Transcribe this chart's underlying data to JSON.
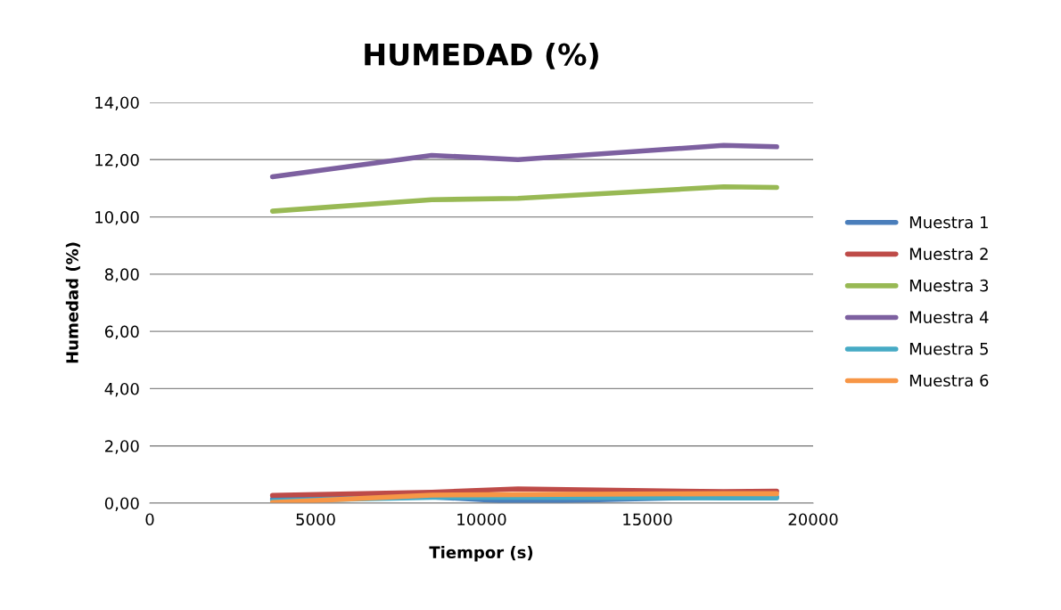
{
  "chart_data": {
    "type": "line",
    "title": "HUMEDAD (%)",
    "xlabel": "Tiempor (s)",
    "ylabel": "Humedad (%)",
    "x": [
      3700,
      8500,
      11100,
      17300,
      18900
    ],
    "series": [
      {
        "name": "Muestra 1",
        "color": "#4a7ebb",
        "values": [
          0.15,
          0.22,
          0.05,
          0.22,
          0.22
        ]
      },
      {
        "name": "Muestra 2",
        "color": "#be4b48",
        "values": [
          0.27,
          0.38,
          0.5,
          0.4,
          0.42
        ]
      },
      {
        "name": "Muestra 3",
        "color": "#98b954",
        "values": [
          10.2,
          10.6,
          10.65,
          11.05,
          11.03
        ]
      },
      {
        "name": "Muestra 4",
        "color": "#7d60a0",
        "values": [
          11.4,
          12.15,
          12.0,
          12.5,
          12.45
        ]
      },
      {
        "name": "Muestra 5",
        "color": "#46aac5",
        "values": [
          0.08,
          0.2,
          0.2,
          0.18,
          0.18
        ]
      },
      {
        "name": "Muestra 6",
        "color": "#f79646",
        "values": [
          0.02,
          0.28,
          0.3,
          0.33,
          0.33
        ]
      }
    ],
    "xlim": [
      0,
      20000
    ],
    "xticks": [
      0,
      5000,
      10000,
      15000,
      20000
    ],
    "ylim": [
      0,
      14
    ],
    "yticks": [
      {
        "value": 0,
        "label": "0,00"
      },
      {
        "value": 2,
        "label": "2,00"
      },
      {
        "value": 4,
        "label": "4,00"
      },
      {
        "value": 6,
        "label": "6,00"
      },
      {
        "value": 8,
        "label": "8,00"
      },
      {
        "value": 10,
        "label": "10,00"
      },
      {
        "value": 12,
        "label": "12,00"
      },
      {
        "value": 14,
        "label": "14,00"
      }
    ],
    "grid": "y",
    "legend": "right",
    "marker": "none",
    "line_style": "solid"
  }
}
